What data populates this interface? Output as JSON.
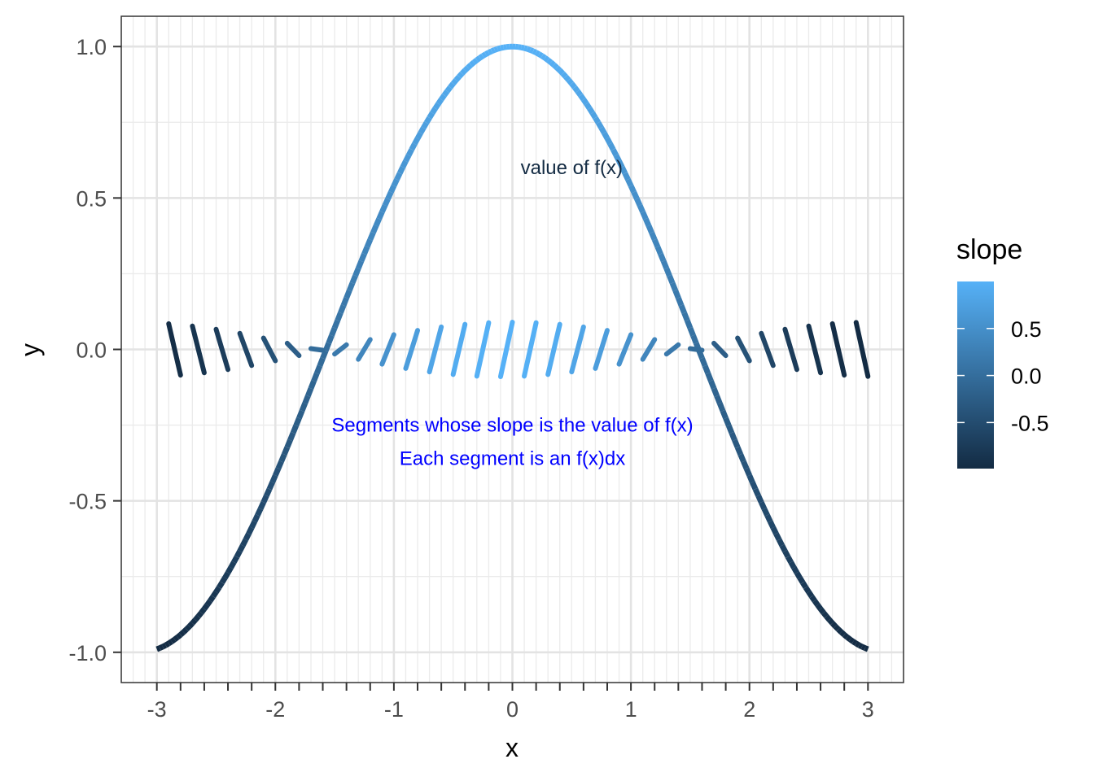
{
  "chart_data": {
    "type": "line",
    "xlabel": "x",
    "ylabel": "y",
    "xlim": [
      -3.3,
      3.3
    ],
    "ylim": [
      -1.1,
      1.1
    ],
    "x_ticks": [
      -3,
      -2,
      -1,
      0,
      1,
      2,
      3
    ],
    "x_tick_labels": [
      "-3",
      "-2",
      "-1",
      "0",
      "1",
      "2",
      "3"
    ],
    "y_ticks": [
      -1.0,
      -0.5,
      0.0,
      0.5,
      1.0
    ],
    "y_tick_labels": [
      "-1.0",
      "-0.5",
      "0.0",
      "0.5",
      "1.0"
    ],
    "grid": true,
    "curve": {
      "function": "cos(x)",
      "x_range": [
        -3,
        3
      ],
      "color_by": "value"
    },
    "segments": {
      "x": [
        -2.8,
        -2.6,
        -2.4,
        -2.2,
        -2.0,
        -1.8,
        -1.6,
        -1.4,
        -1.2,
        -1.0,
        -0.8,
        -0.6,
        -0.4,
        -0.2,
        0.0,
        0.2,
        0.4,
        0.6,
        0.8,
        1.0,
        1.2,
        1.4,
        1.6,
        1.8,
        2.0,
        2.2,
        2.4,
        2.6,
        2.8,
        3.0
      ],
      "slope": [
        -0.942,
        -0.857,
        -0.737,
        -0.589,
        -0.416,
        -0.227,
        -0.029,
        0.17,
        0.362,
        0.54,
        0.697,
        0.825,
        0.921,
        0.98,
        1.0,
        0.98,
        0.921,
        0.825,
        0.697,
        0.54,
        0.362,
        0.17,
        -0.029,
        -0.227,
        -0.416,
        -0.589,
        -0.737,
        -0.857,
        -0.942,
        -0.99
      ],
      "y_center": 0.0
    },
    "legend": {
      "title": "slope",
      "position": "right",
      "breaks": [
        0.5,
        0.0,
        -0.5
      ],
      "labels": [
        "0.5",
        "0.0",
        "-0.5"
      ],
      "range": [
        -0.99,
        1.0
      ],
      "low_color": "#132B43",
      "high_color": "#56B1F7"
    },
    "annotations": [
      {
        "text": "value of f(x)",
        "x": 0.5,
        "y": 0.6,
        "color": "#132B43"
      },
      {
        "text": "Segments whose slope is the value of f(x)",
        "x": 0.0,
        "y": -0.25,
        "color": "#0000FF"
      },
      {
        "text": "Each segment is an f(x)dx",
        "x": 0.0,
        "y": -0.36,
        "color": "#0000FF"
      }
    ]
  }
}
